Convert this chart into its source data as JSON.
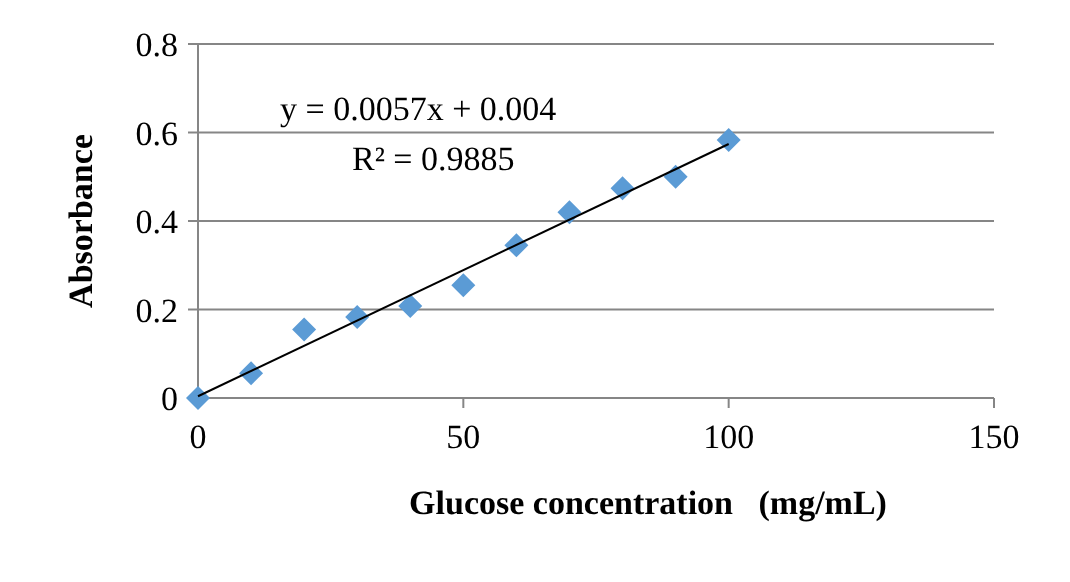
{
  "chart_data": {
    "type": "scatter",
    "xlabel": "Glucose concentration   (mg/mL)",
    "ylabel": "Absorbance",
    "xlim": [
      0,
      150
    ],
    "xticks": [
      0,
      50,
      100,
      150
    ],
    "ylim": [
      0,
      0.8
    ],
    "yticks": [
      0,
      0.2,
      0.4,
      0.6,
      0.8
    ],
    "grid": "y",
    "annotations": [
      "y = 0.0057x + 0.004",
      "R² = 0.9885"
    ],
    "series": [
      {
        "marker": "diamond",
        "color": "#5b9bd5",
        "x": [
          0,
          10,
          20,
          30,
          40,
          50,
          60,
          70,
          80,
          90,
          100
        ],
        "values": [
          0,
          0.056,
          0.155,
          0.183,
          0.208,
          0.255,
          0.345,
          0.42,
          0.474,
          0.5,
          0.583
        ]
      },
      {
        "type": "line",
        "marker": "none",
        "color": "#000000",
        "line_style": "solid",
        "x": [
          0,
          100
        ],
        "values": [
          0.004,
          0.574
        ]
      }
    ]
  }
}
